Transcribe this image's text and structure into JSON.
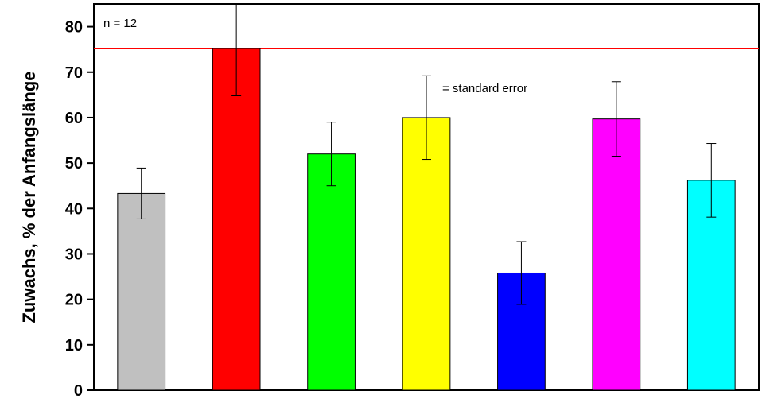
{
  "chart_data": {
    "type": "bar",
    "ylabel": "Zuwachs, % der Anfangslänge",
    "ylim": [
      0,
      85
    ],
    "yticks": [
      0,
      10,
      20,
      30,
      40,
      50,
      60,
      70,
      80
    ],
    "series": [
      {
        "values": [
          43.3,
          75.2,
          52.0,
          60.0,
          25.8,
          59.7,
          46.2
        ],
        "errors": [
          5.6,
          10.4,
          7.0,
          9.2,
          6.9,
          8.2,
          8.1
        ],
        "colors": [
          "#c0c0c0",
          "#ff0000",
          "#00ff00",
          "#ffff00",
          "#0000ff",
          "#ff00ff",
          "#00ffff"
        ]
      }
    ],
    "reference_line": {
      "value": 75.2,
      "color": "#ff0000"
    },
    "grid": false,
    "annotations": {
      "n_label": "n = 12",
      "se_label": "= standard error"
    }
  }
}
